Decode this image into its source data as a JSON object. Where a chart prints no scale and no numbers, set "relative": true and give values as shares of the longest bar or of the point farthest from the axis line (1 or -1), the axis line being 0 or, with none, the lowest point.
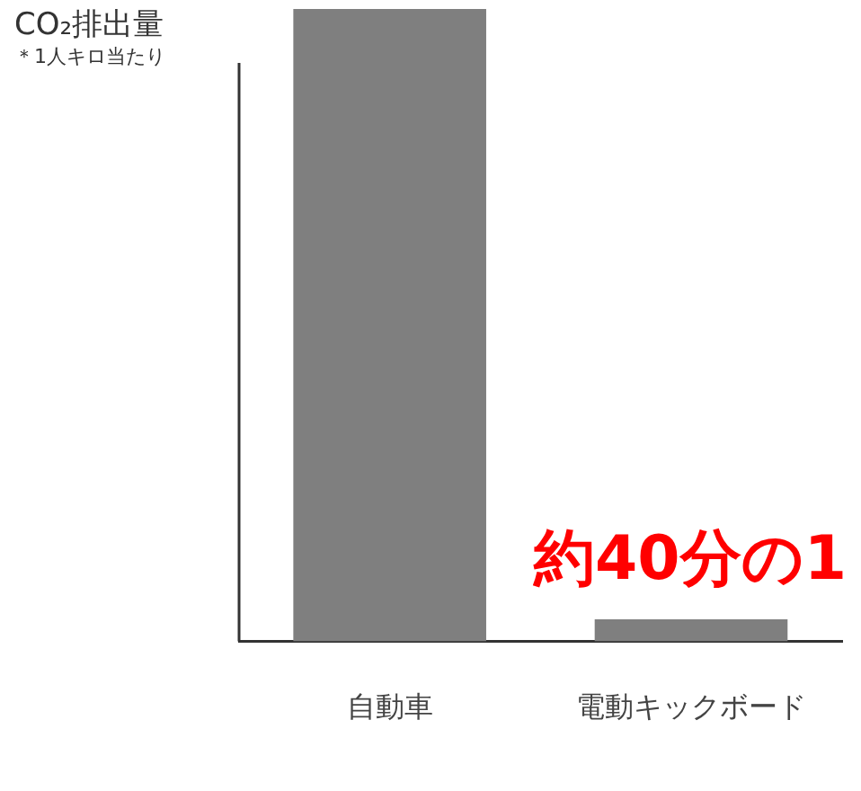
{
  "chart_data": {
    "type": "bar",
    "title": "CO₂排出量",
    "subtitle": "＊1人キロ当たり",
    "relative": true,
    "grid": false,
    "legend": false,
    "categories": [
      "自動車",
      "電動キックボード"
    ],
    "values": [
      1,
      0.035
    ],
    "color": "#7f7f7f",
    "annotations": [
      "約40分の1"
    ]
  }
}
